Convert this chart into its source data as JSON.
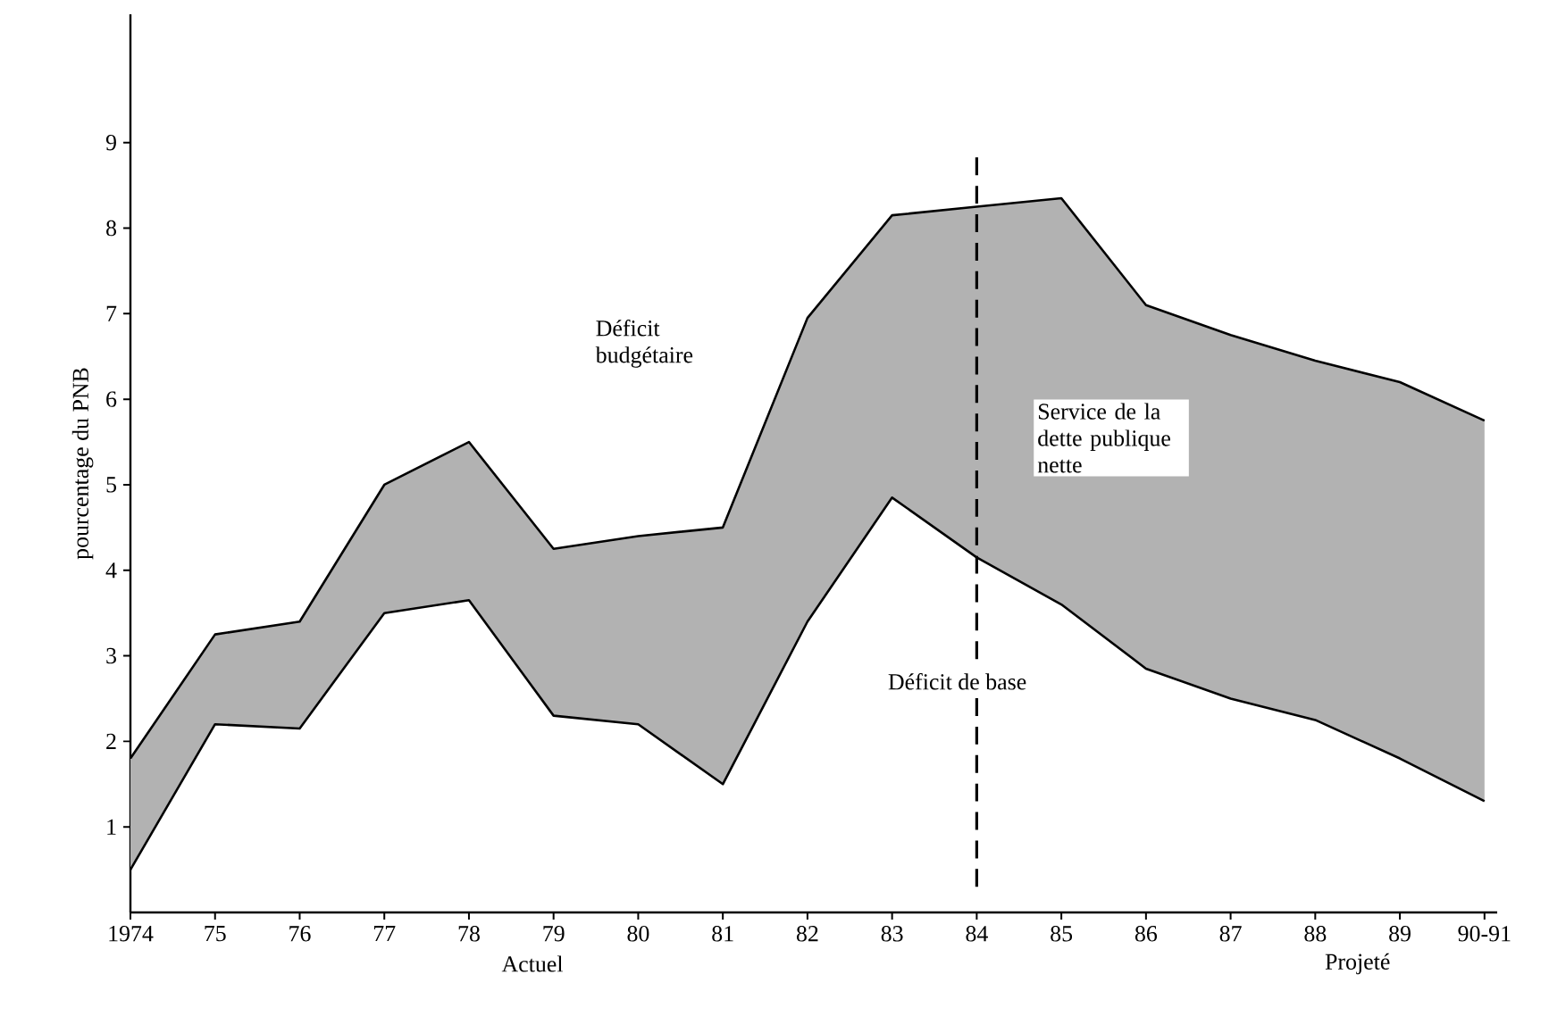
{
  "chart_data": {
    "type": "line",
    "ylabel": "pourcentage du PNB",
    "categories": [
      "1974",
      "75",
      "76",
      "77",
      "78",
      "79",
      "80",
      "81",
      "82",
      "83",
      "84",
      "85",
      "86",
      "87",
      "88",
      "89",
      "90-91"
    ],
    "series": [
      {
        "color": "#000000",
        "values": [
          1.8,
          3.25,
          3.4,
          5.0,
          5.5,
          4.25,
          4.4,
          4.5,
          6.95,
          8.15,
          8.25,
          8.35,
          7.1,
          6.75,
          6.45,
          6.2,
          5.75
        ],
        "lower": [
          0.5,
          2.2,
          2.15,
          3.5,
          3.65,
          2.3,
          2.2,
          1.5,
          3.4,
          4.85,
          4.15,
          3.6,
          2.85,
          2.5,
          2.25,
          1.8,
          1.3
        ],
        "upper": [
          1.8,
          3.25,
          3.4,
          5.0,
          5.5,
          4.25,
          4.4,
          4.5,
          6.95,
          8.15,
          8.25,
          8.35,
          7.1,
          6.75,
          6.45,
          6.2,
          5.75
        ]
      },
      {
        "color": "#000000",
        "values": [
          0.5,
          2.2,
          2.15,
          3.5,
          3.65,
          2.3,
          2.2,
          1.5,
          3.4,
          4.85,
          4.15,
          3.6,
          2.85,
          2.5,
          2.25,
          1.8,
          1.3
        ]
      }
    ],
    "ylim": [
      0,
      10.5
    ],
    "yticks": [
      1,
      2,
      3,
      4,
      5,
      6,
      7,
      8,
      9
    ],
    "ref_lines": [
      {
        "axis": "x",
        "value": "84",
        "line_style": "dashed",
        "color": "#000000"
      }
    ],
    "annotations": [
      "Déficit budgétaire",
      "Service de la dette publique nette",
      "Déficit de base",
      "Actuel",
      "Projeté"
    ],
    "grid": false,
    "marker": "none"
  }
}
